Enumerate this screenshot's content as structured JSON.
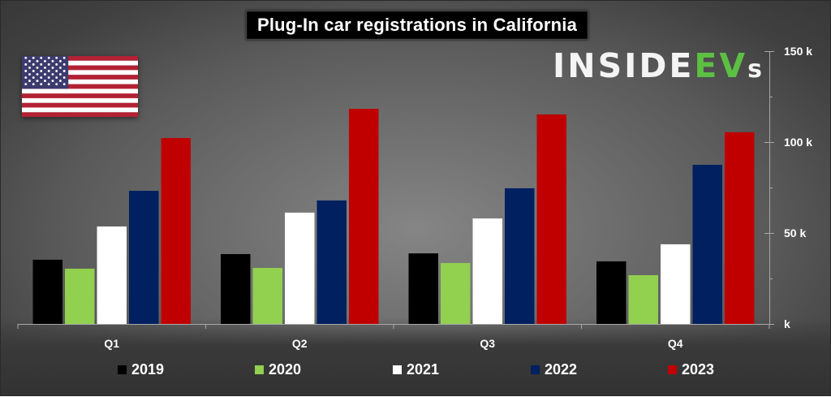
{
  "chart_data": {
    "type": "bar",
    "title": "Plug-In car registrations in California",
    "xlabel": "",
    "ylabel": "",
    "categories": [
      "Q1",
      "Q2",
      "Q3",
      "Q4"
    ],
    "series": [
      {
        "name": "2019",
        "color": "#000000",
        "values": [
          35.3,
          38.4,
          38.8,
          34.4
        ]
      },
      {
        "name": "2020",
        "color": "#92d050",
        "values": [
          30.4,
          30.8,
          33.5,
          26.8
        ]
      },
      {
        "name": "2021",
        "color": "#ffffff",
        "values": [
          53.6,
          61.2,
          58.0,
          43.8
        ]
      },
      {
        "name": "2022",
        "color": "#002060",
        "values": [
          73.2,
          67.9,
          74.6,
          87.5
        ]
      },
      {
        "name": "2023",
        "color": "#c00000",
        "values": [
          102.2,
          118.3,
          115.2,
          105.4
        ]
      }
    ],
    "units": "thousands",
    "ylim": [
      0,
      150
    ],
    "y_axis_position": "right",
    "y_ticks": [
      0,
      50,
      100,
      150
    ],
    "y_tick_labels": [
      "k",
      "50 k",
      "100 k",
      "150 k"
    ],
    "y_minor_ticks": [
      25,
      75,
      125
    ],
    "grid": false,
    "legend_position": "bottom"
  },
  "branding": {
    "logo_white": "INSIDE",
    "logo_green": "EV",
    "logo_suffix": "s",
    "flag": "us-flag-icon"
  }
}
